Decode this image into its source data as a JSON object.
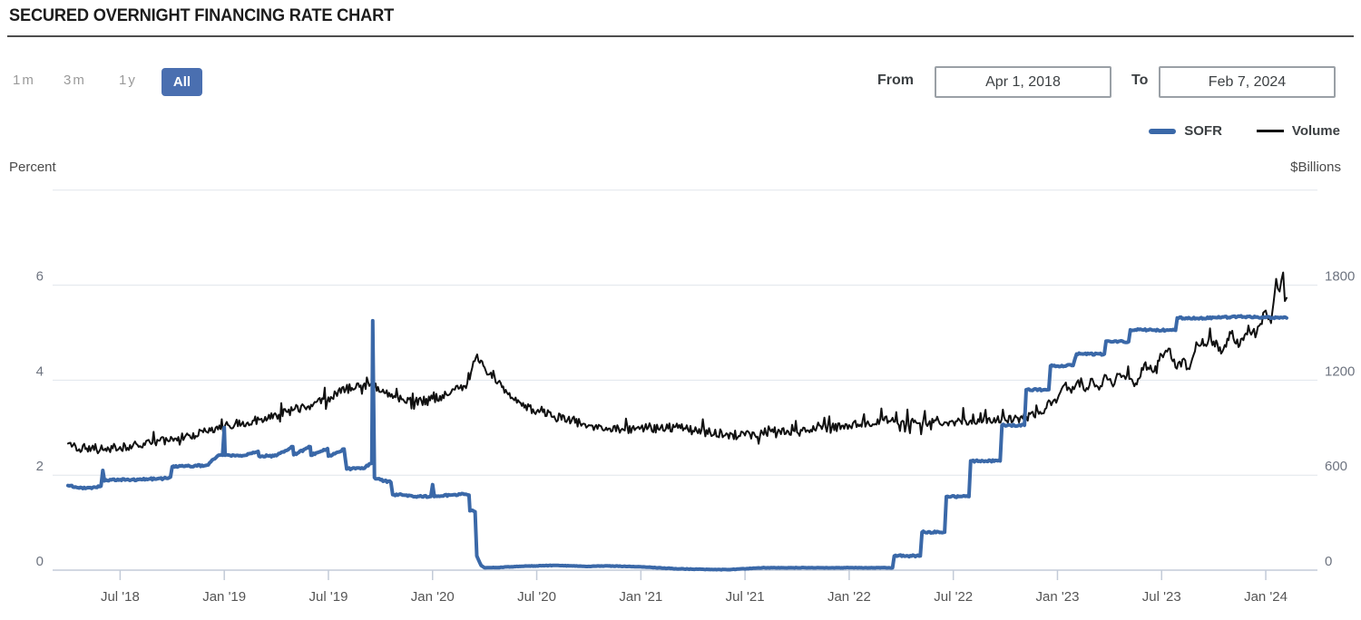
{
  "header": {
    "title": "SECURED OVERNIGHT FINANCING RATE CHART"
  },
  "controls": {
    "ranges": [
      {
        "label": "1m",
        "active": false
      },
      {
        "label": "3m",
        "active": false
      },
      {
        "label": "1y",
        "active": false
      },
      {
        "label": "All",
        "active": true
      }
    ],
    "from_label": "From",
    "from_value": "Apr 1, 2018",
    "to_label": "To",
    "to_value": "Feb 7, 2024"
  },
  "legend": [
    {
      "name": "SOFR",
      "color": "#3a68a8"
    },
    {
      "name": "Volume",
      "color": "#111111"
    }
  ],
  "axes": {
    "left_caption": "Percent",
    "right_caption": "$Billions"
  },
  "colors": {
    "accent": "#4a6fb0",
    "sofr_line": "#3a68a8",
    "volume_line": "#111111",
    "gridline": "#e1e5ec",
    "axis_line": "#c3cbd8",
    "tick_text": "#6e7480",
    "x_tick_text": "#555555"
  },
  "chart_data": {
    "type": "line",
    "title": "Secured Overnight Financing Rate and Volume",
    "x_axis": {
      "start_date": "Apr 1, 2018",
      "end_date": "Feb 7, 2024",
      "months_total": 70.2,
      "ticks": [
        {
          "label": "Jul '18",
          "m": 3
        },
        {
          "label": "Jan '19",
          "m": 9
        },
        {
          "label": "Jul '19",
          "m": 15
        },
        {
          "label": "Jan '20",
          "m": 21
        },
        {
          "label": "Jul '20",
          "m": 27
        },
        {
          "label": "Jan '21",
          "m": 33
        },
        {
          "label": "Jul '21",
          "m": 39
        },
        {
          "label": "Jan '22",
          "m": 45
        },
        {
          "label": "Jul '22",
          "m": 51
        },
        {
          "label": "Jan '23",
          "m": 57
        },
        {
          "label": "Jul '23",
          "m": 63
        },
        {
          "label": "Jan '24",
          "m": 69
        }
      ]
    },
    "y_left": {
      "label": "Percent",
      "ticks": [
        0,
        2,
        4,
        6
      ],
      "range": [
        0,
        8
      ]
    },
    "y_right": {
      "label": "$Billions",
      "ticks": [
        0,
        600,
        1200,
        1800
      ],
      "range": [
        0,
        2400
      ]
    },
    "grid": true,
    "legend_position": "top-right",
    "series": [
      {
        "name": "SOFR",
        "axis": "left",
        "unit": "percent",
        "color": "#3a68a8",
        "width": 4,
        "noise": 0.02,
        "points": [
          [
            0,
            1.78
          ],
          [
            0.5,
            1.74
          ],
          [
            1,
            1.72
          ],
          [
            1.5,
            1.75
          ],
          [
            1.9,
            1.77
          ],
          [
            2.0,
            2.1
          ],
          [
            2.1,
            1.88
          ],
          [
            2.5,
            1.9
          ],
          [
            3.5,
            1.9
          ],
          [
            4.5,
            1.92
          ],
          [
            5.5,
            1.93
          ],
          [
            5.9,
            1.96
          ],
          [
            6.0,
            2.18
          ],
          [
            7,
            2.19
          ],
          [
            8,
            2.21
          ],
          [
            8.6,
            2.4
          ],
          [
            8.9,
            2.42
          ],
          [
            9.0,
            3.0
          ],
          [
            9.05,
            2.42
          ],
          [
            10,
            2.4
          ],
          [
            10.95,
            2.5
          ],
          [
            11,
            2.4
          ],
          [
            12,
            2.41
          ],
          [
            12.95,
            2.6
          ],
          [
            13,
            2.43
          ],
          [
            13.95,
            2.6
          ],
          [
            14,
            2.42
          ],
          [
            14.95,
            2.56
          ],
          [
            15,
            2.4
          ],
          [
            15.9,
            2.55
          ],
          [
            16.05,
            2.13
          ],
          [
            17,
            2.14
          ],
          [
            17.5,
            2.25
          ],
          [
            17.55,
            5.25
          ],
          [
            17.65,
            1.95
          ],
          [
            18,
            1.9
          ],
          [
            18.6,
            1.85
          ],
          [
            18.7,
            1.59
          ],
          [
            19.5,
            1.58
          ],
          [
            20,
            1.55
          ],
          [
            20.9,
            1.55
          ],
          [
            21.0,
            1.8
          ],
          [
            21.1,
            1.55
          ],
          [
            22,
            1.58
          ],
          [
            22.9,
            1.6
          ],
          [
            23.1,
            1.58
          ],
          [
            23.15,
            1.25
          ],
          [
            23.45,
            1.23
          ],
          [
            23.55,
            0.3
          ],
          [
            23.8,
            0.1
          ],
          [
            24,
            0.05
          ],
          [
            25,
            0.06
          ],
          [
            26,
            0.08
          ],
          [
            27,
            0.09
          ],
          [
            28,
            0.1
          ],
          [
            29,
            0.09
          ],
          [
            30,
            0.08
          ],
          [
            31,
            0.09
          ],
          [
            32,
            0.08
          ],
          [
            33,
            0.07
          ],
          [
            34,
            0.05
          ],
          [
            35,
            0.03
          ],
          [
            36,
            0.02
          ],
          [
            38,
            0.01
          ],
          [
            40,
            0.05
          ],
          [
            42,
            0.05
          ],
          [
            44,
            0.05
          ],
          [
            46,
            0.05
          ],
          [
            47.5,
            0.05
          ],
          [
            47.6,
            0.3
          ],
          [
            49.1,
            0.3
          ],
          [
            49.2,
            0.8
          ],
          [
            50.5,
            0.8
          ],
          [
            50.6,
            1.55
          ],
          [
            51.9,
            1.55
          ],
          [
            52.0,
            2.3
          ],
          [
            53.7,
            2.3
          ],
          [
            53.8,
            3.05
          ],
          [
            55.1,
            3.05
          ],
          [
            55.2,
            3.8
          ],
          [
            56.5,
            3.8
          ],
          [
            56.6,
            4.3
          ],
          [
            57.9,
            4.31
          ],
          [
            58.1,
            4.55
          ],
          [
            59.7,
            4.55
          ],
          [
            59.8,
            4.82
          ],
          [
            61.1,
            4.81
          ],
          [
            61.2,
            5.06
          ],
          [
            63.8,
            5.05
          ],
          [
            63.9,
            5.31
          ],
          [
            65,
            5.3
          ],
          [
            66,
            5.32
          ],
          [
            67,
            5.33
          ],
          [
            68,
            5.34
          ],
          [
            69,
            5.32
          ],
          [
            70.2,
            5.31
          ]
        ]
      },
      {
        "name": "Volume",
        "axis": "right",
        "unit": "billions_usd",
        "color": "#111111",
        "width": 2,
        "noise": 28,
        "points": [
          [
            0,
            800
          ],
          [
            1,
            765
          ],
          [
            2,
            760
          ],
          [
            3,
            778
          ],
          [
            4,
            792
          ],
          [
            5,
            805
          ],
          [
            6,
            832
          ],
          [
            7,
            852
          ],
          [
            8,
            872
          ],
          [
            9,
            900
          ],
          [
            10,
            922
          ],
          [
            11,
            952
          ],
          [
            12,
            978
          ],
          [
            13,
            1012
          ],
          [
            14,
            1045
          ],
          [
            15,
            1092
          ],
          [
            16,
            1142
          ],
          [
            17,
            1165
          ],
          [
            17.5,
            1185
          ],
          [
            18,
            1125
          ],
          [
            19,
            1092
          ],
          [
            20,
            1062
          ],
          [
            21,
            1082
          ],
          [
            22,
            1112
          ],
          [
            23,
            1180
          ],
          [
            23.5,
            1345
          ],
          [
            24,
            1280
          ],
          [
            25,
            1155
          ],
          [
            26,
            1062
          ],
          [
            27,
            1002
          ],
          [
            28,
            972
          ],
          [
            29,
            942
          ],
          [
            30,
            916
          ],
          [
            31,
            900
          ],
          [
            32,
            886
          ],
          [
            33,
            900
          ],
          [
            34,
            890
          ],
          [
            35,
            906
          ],
          [
            36,
            880
          ],
          [
            37,
            868
          ],
          [
            38,
            858
          ],
          [
            39,
            850
          ],
          [
            40,
            868
          ],
          [
            41,
            878
          ],
          [
            42,
            870
          ],
          [
            43,
            888
          ],
          [
            44,
            900
          ],
          [
            45,
            916
          ],
          [
            46,
            926
          ],
          [
            47,
            946
          ],
          [
            48,
            936
          ],
          [
            49,
            928
          ],
          [
            50,
            946
          ],
          [
            51,
            936
          ],
          [
            52,
            946
          ],
          [
            53,
            956
          ],
          [
            54,
            946
          ],
          [
            55,
            958
          ],
          [
            56,
            1000
          ],
          [
            57,
            1080
          ],
          [
            57.4,
            1170
          ],
          [
            57.8,
            1120
          ],
          [
            58.2,
            1200
          ],
          [
            58.6,
            1130
          ],
          [
            59,
            1210
          ],
          [
            59.4,
            1140
          ],
          [
            59.8,
            1230
          ],
          [
            60.2,
            1160
          ],
          [
            60.6,
            1240
          ],
          [
            61,
            1230
          ],
          [
            61.5,
            1180
          ],
          [
            62,
            1300
          ],
          [
            62.5,
            1250
          ],
          [
            63,
            1360
          ],
          [
            63.4,
            1400
          ],
          [
            63.8,
            1280
          ],
          [
            64.2,
            1330
          ],
          [
            64.6,
            1270
          ],
          [
            65,
            1440
          ],
          [
            66,
            1445
          ],
          [
            66.5,
            1380
          ],
          [
            67,
            1495
          ],
          [
            67.5,
            1420
          ],
          [
            68,
            1545
          ],
          [
            68.4,
            1470
          ],
          [
            69,
            1640
          ],
          [
            69.3,
            1560
          ],
          [
            69.6,
            1840
          ],
          [
            69.8,
            1760
          ],
          [
            70.0,
            1880
          ],
          [
            70.1,
            1700
          ],
          [
            70.2,
            1720
          ]
        ]
      }
    ]
  }
}
